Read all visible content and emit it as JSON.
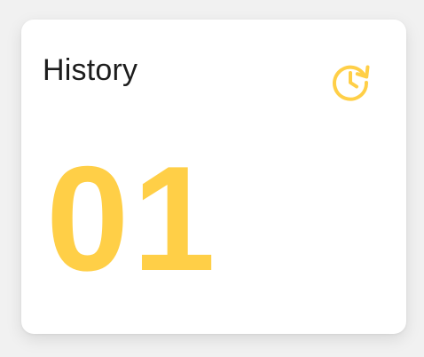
{
  "card": {
    "title": "History",
    "count": "01",
    "icon": "history-icon"
  },
  "colors": {
    "accent": "#FFCF47",
    "title": "#1D1D1D",
    "card_background": "#FFFFFF",
    "page_background": "#F1F1F1"
  }
}
